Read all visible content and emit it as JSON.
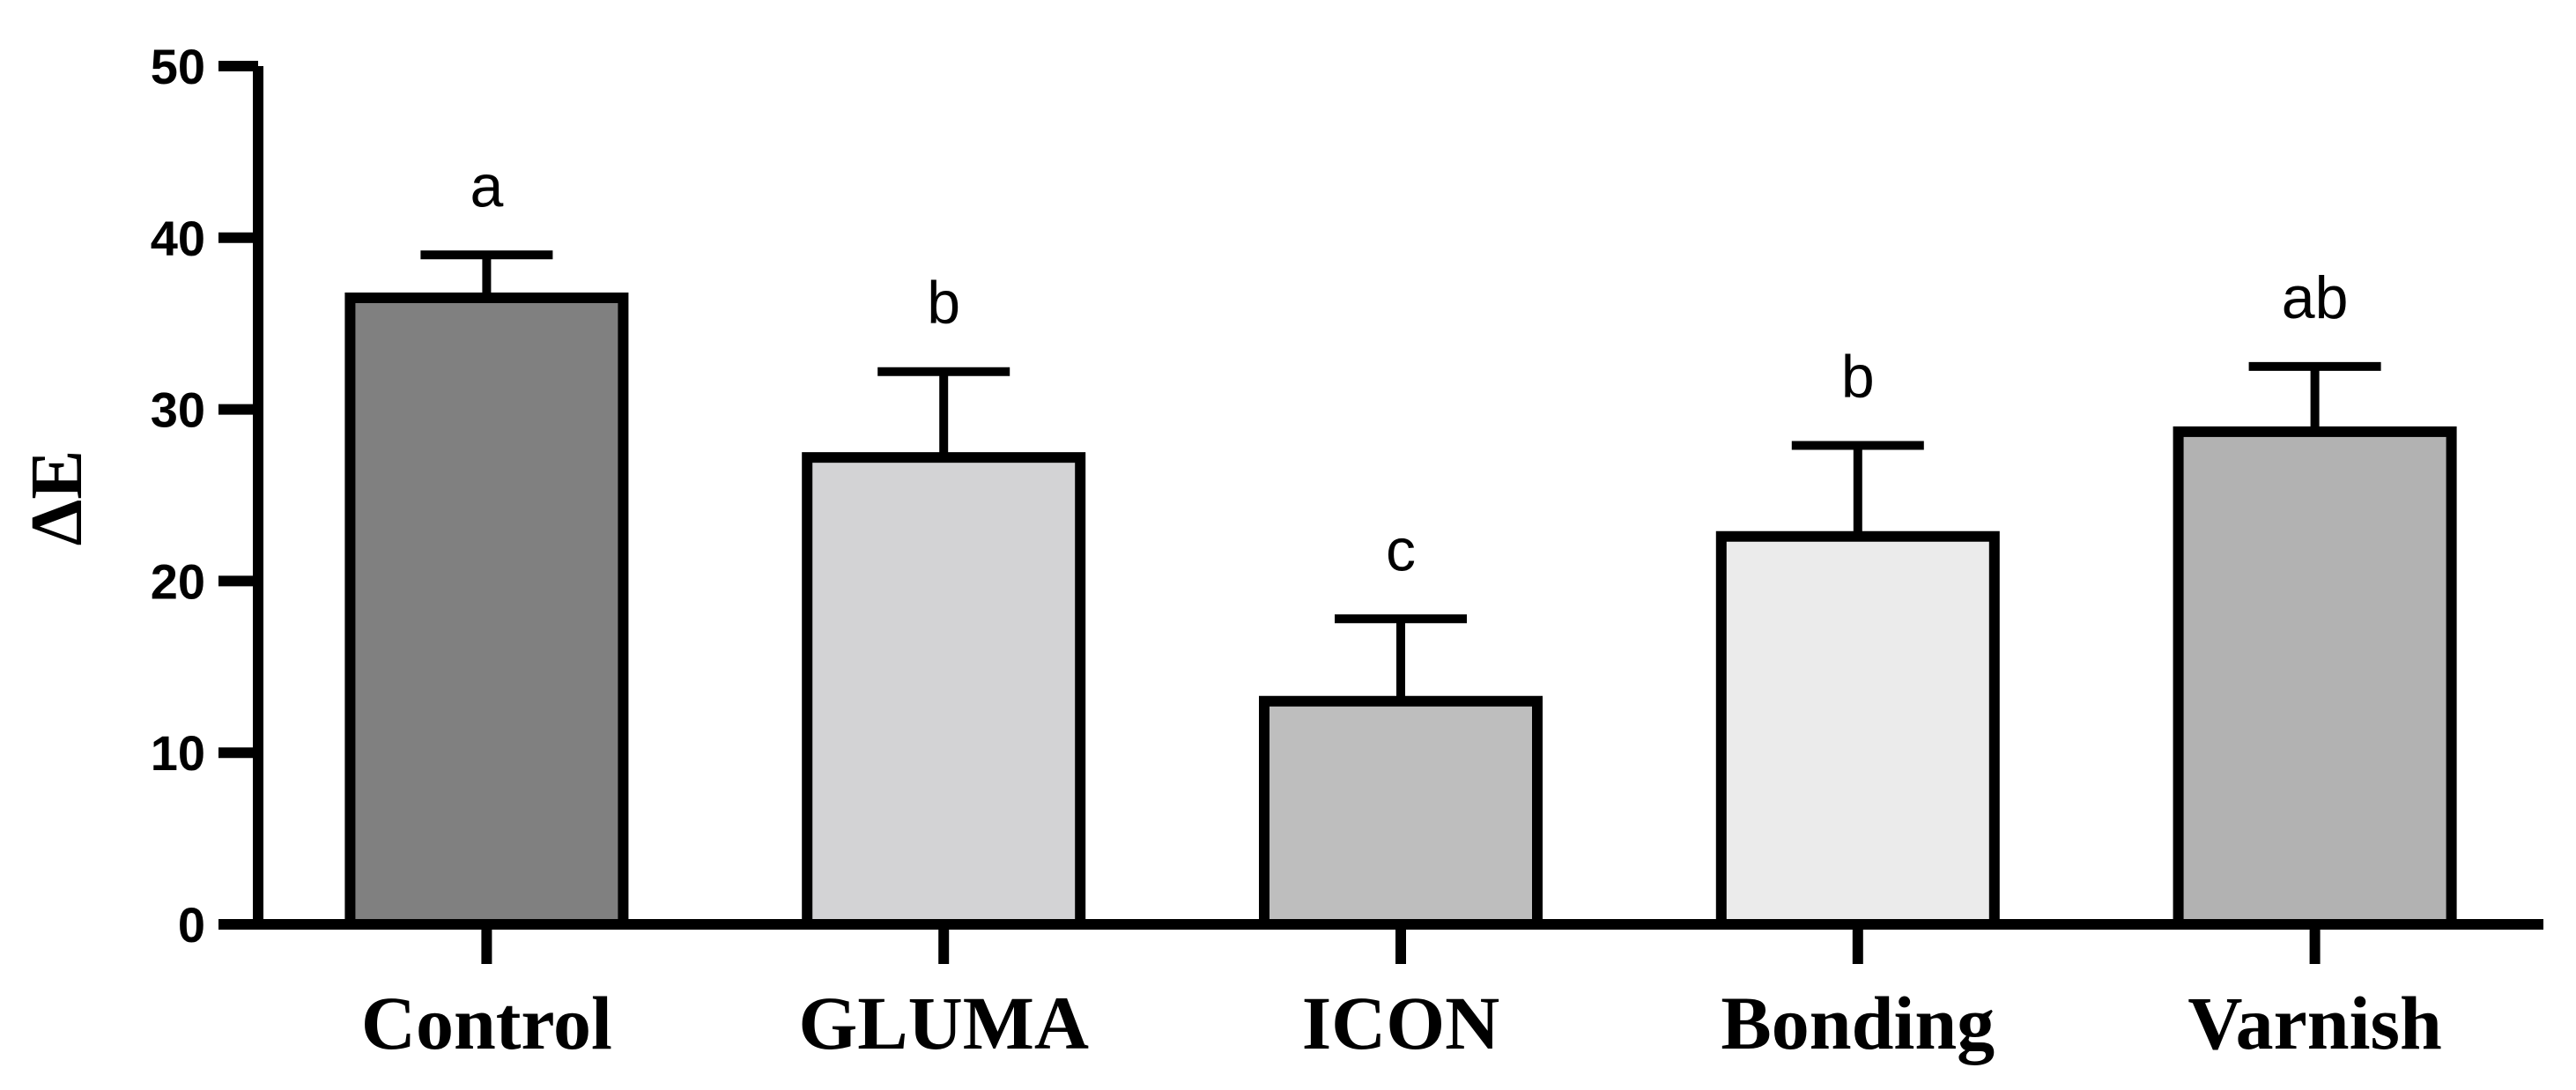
{
  "chart_data": {
    "type": "bar",
    "title": "",
    "xlabel": "",
    "ylabel": "ΔE",
    "ylim": [
      0,
      50
    ],
    "yticks": [
      0,
      10,
      20,
      30,
      40,
      50
    ],
    "grid": false,
    "categories": [
      "Control",
      "GLUMA",
      "ICON",
      "Bonding",
      "Varnish"
    ],
    "values": [
      36.5,
      27.2,
      13.0,
      22.6,
      28.7
    ],
    "errors": [
      2.5,
      5.0,
      4.8,
      5.3,
      3.8
    ],
    "significance_labels": [
      "a",
      "b",
      "c",
      "b",
      "ab"
    ],
    "colors": [
      "#808080",
      "#d3d3d5",
      "#bebebe",
      "#ebebeb",
      "#b2b2b2"
    ]
  }
}
